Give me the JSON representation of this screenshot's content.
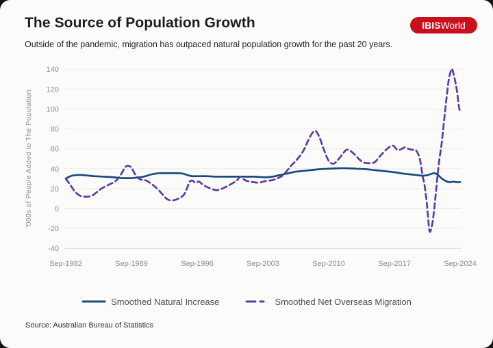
{
  "header": {
    "title": "The Source of Population Growth",
    "subtitle": "Outside of the pandemic, migration has outpaced natural population growth for the past 20 years.",
    "logo": {
      "bold": "IBIS",
      "regular": "World",
      "background": "#c8101c",
      "text_color": "#ffffff"
    }
  },
  "footer": {
    "source": "Source: Australian Bureau of Statistics"
  },
  "chart_data": {
    "type": "line",
    "title": "The Source of Population Growth",
    "xlabel": "",
    "ylabel": "'000s of People Added to The Population",
    "x_unit": "years since Sep-1982 (quarterly, Sep labels)",
    "x_domain": [
      0,
      42
    ],
    "ylim": [
      -40,
      140
    ],
    "y_ticks": [
      140,
      120,
      100,
      80,
      60,
      40,
      20,
      0,
      -20,
      -40
    ],
    "x_tick_labels": [
      "Sep-1982",
      "Sep-1989",
      "Sep-1996",
      "Sep-2003",
      "Sep-2010",
      "Sep-2017",
      "Sep-2024"
    ],
    "x_tick_positions": [
      0,
      7,
      14,
      21,
      28,
      35,
      42
    ],
    "grid": true,
    "grid_color": "#ebebeb",
    "zero_line_color": "#dcdcdc",
    "legend_position": "bottom",
    "series": [
      {
        "name": "Smoothed Natural Increase",
        "color": "#18497e",
        "style": "solid",
        "points": [
          [
            0,
            30
          ],
          [
            0.5,
            32.5
          ],
          [
            1,
            33.5
          ],
          [
            1.5,
            33.8
          ],
          [
            2,
            33.5
          ],
          [
            2.5,
            33
          ],
          [
            3,
            32.5
          ],
          [
            3.5,
            32.3
          ],
          [
            4,
            32
          ],
          [
            4.5,
            31.8
          ],
          [
            5,
            31.5
          ],
          [
            5.5,
            31
          ],
          [
            6,
            30.5
          ],
          [
            6.5,
            30.5
          ],
          [
            7,
            30.5
          ],
          [
            7.5,
            31
          ],
          [
            8,
            31.5
          ],
          [
            8.5,
            32.5
          ],
          [
            9,
            34
          ],
          [
            9.5,
            35
          ],
          [
            10,
            35.5
          ],
          [
            11,
            35.5
          ],
          [
            12,
            35.5
          ],
          [
            12.5,
            35
          ],
          [
            13,
            33.5
          ],
          [
            13.5,
            32.5
          ],
          [
            14,
            32.5
          ],
          [
            15,
            32.5
          ],
          [
            16,
            32
          ],
          [
            17,
            32
          ],
          [
            18,
            32
          ],
          [
            19,
            32
          ],
          [
            20,
            32
          ],
          [
            21,
            31.5
          ],
          [
            21.5,
            31.5
          ],
          [
            22,
            32
          ],
          [
            22.5,
            33
          ],
          [
            23,
            34
          ],
          [
            23.5,
            35
          ],
          [
            24,
            36
          ],
          [
            24.5,
            37
          ],
          [
            25,
            37.5
          ],
          [
            25.5,
            38
          ],
          [
            26,
            38.5
          ],
          [
            27,
            39.5
          ],
          [
            28,
            40
          ],
          [
            29,
            40.5
          ],
          [
            30,
            40.5
          ],
          [
            31,
            40
          ],
          [
            32,
            39.5
          ],
          [
            33,
            38.5
          ],
          [
            34,
            37.5
          ],
          [
            35,
            36.5
          ],
          [
            36,
            35
          ],
          [
            37,
            34
          ],
          [
            37.5,
            33.5
          ],
          [
            38,
            33
          ],
          [
            38.5,
            33.5
          ],
          [
            39,
            35
          ],
          [
            39.3,
            35.5
          ],
          [
            39.6,
            34
          ],
          [
            40,
            30.5
          ],
          [
            40.4,
            28
          ],
          [
            40.8,
            26.5
          ],
          [
            41,
            26.5
          ],
          [
            41.3,
            27
          ],
          [
            41.6,
            26.5
          ],
          [
            42,
            26.5
          ]
        ]
      },
      {
        "name": "Smoothed Net Overseas Migration",
        "color": "#5c3aa6",
        "style": "dashed",
        "points": [
          [
            0,
            30
          ],
          [
            0.4,
            25
          ],
          [
            0.9,
            18
          ],
          [
            1.4,
            13.5
          ],
          [
            1.9,
            12
          ],
          [
            2.4,
            12
          ],
          [
            2.9,
            13.5
          ],
          [
            3.8,
            20
          ],
          [
            4.6,
            24
          ],
          [
            5.3,
            27.5
          ],
          [
            5.8,
            33
          ],
          [
            6.3,
            41
          ],
          [
            6.6,
            43
          ],
          [
            7,
            41
          ],
          [
            7.4,
            34
          ],
          [
            7.8,
            30
          ],
          [
            8.2,
            28.5
          ],
          [
            8.6,
            28
          ],
          [
            9.3,
            23.5
          ],
          [
            10,
            17.5
          ],
          [
            10.6,
            11
          ],
          [
            11,
            8.5
          ],
          [
            11.6,
            8.5
          ],
          [
            12.2,
            11
          ],
          [
            12.6,
            14
          ],
          [
            12.9,
            20
          ],
          [
            13.2,
            27
          ],
          [
            13.5,
            28
          ],
          [
            13.8,
            26
          ],
          [
            14.2,
            27
          ],
          [
            14.6,
            24
          ],
          [
            15.2,
            21
          ],
          [
            16.1,
            18.5
          ],
          [
            17,
            21.5
          ],
          [
            17.6,
            24.5
          ],
          [
            18.2,
            28
          ],
          [
            18.6,
            32
          ],
          [
            19,
            29
          ],
          [
            19.4,
            27.5
          ],
          [
            20,
            26.5
          ],
          [
            20.6,
            26
          ],
          [
            21.2,
            27.5
          ],
          [
            22,
            28.5
          ],
          [
            22.6,
            30.5
          ],
          [
            23.2,
            34
          ],
          [
            24,
            43
          ],
          [
            24.7,
            50
          ],
          [
            25.3,
            58
          ],
          [
            25.8,
            68
          ],
          [
            26.2,
            75
          ],
          [
            26.6,
            78
          ],
          [
            27,
            72
          ],
          [
            27.5,
            59
          ],
          [
            28,
            48
          ],
          [
            28.5,
            45
          ],
          [
            29,
            49
          ],
          [
            29.5,
            55
          ],
          [
            29.9,
            59
          ],
          [
            30.3,
            58
          ],
          [
            30.8,
            54
          ],
          [
            31.3,
            49
          ],
          [
            31.8,
            46
          ],
          [
            32.3,
            45.5
          ],
          [
            32.9,
            46.5
          ],
          [
            33.5,
            53
          ],
          [
            34,
            58
          ],
          [
            34.5,
            62
          ],
          [
            34.9,
            63
          ],
          [
            35.3,
            59
          ],
          [
            35.7,
            59.5
          ],
          [
            36.1,
            61.5
          ],
          [
            36.5,
            60
          ],
          [
            36.9,
            59
          ],
          [
            37.3,
            58.5
          ],
          [
            37.7,
            50
          ],
          [
            38,
            33
          ],
          [
            38.2,
            24
          ],
          [
            38.4,
            10
          ],
          [
            38.55,
            -5
          ],
          [
            38.75,
            -23
          ],
          [
            39,
            -17
          ],
          [
            39.2,
            -4
          ],
          [
            39.4,
            14
          ],
          [
            39.6,
            34
          ],
          [
            39.8,
            50
          ],
          [
            40,
            63
          ],
          [
            40.2,
            80
          ],
          [
            40.4,
            98
          ],
          [
            40.6,
            115
          ],
          [
            40.8,
            130
          ],
          [
            41,
            138
          ],
          [
            41.15,
            140
          ],
          [
            41.4,
            131
          ],
          [
            41.65,
            119
          ],
          [
            41.85,
            104
          ],
          [
            42,
            96
          ]
        ]
      }
    ]
  }
}
